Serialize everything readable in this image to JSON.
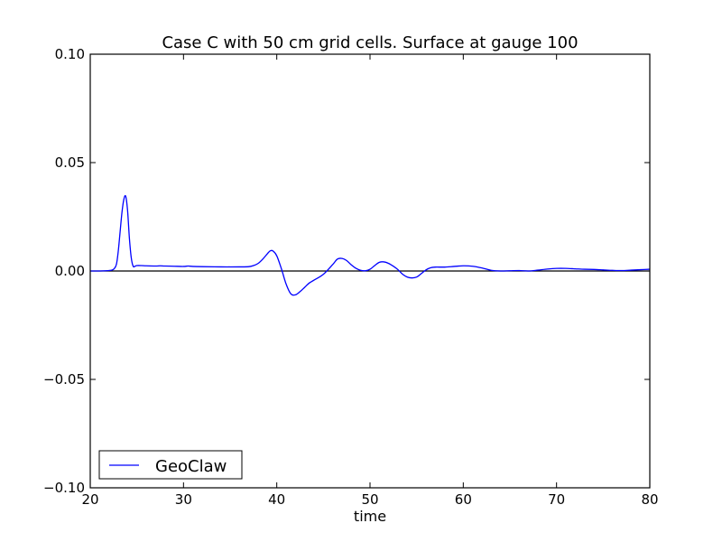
{
  "chart_data": {
    "type": "line",
    "title": "Case C with 50 cm grid cells.  Surface at gauge 100",
    "xlabel": "time",
    "ylabel": "",
    "xlim": [
      20,
      80
    ],
    "ylim": [
      -0.1,
      0.1
    ],
    "x_ticks": [
      20,
      30,
      40,
      50,
      60,
      70,
      80
    ],
    "x_tick_labels": [
      "20",
      "30",
      "40",
      "50",
      "60",
      "70",
      "80"
    ],
    "y_ticks": [
      -0.1,
      -0.05,
      0.0,
      0.05,
      0.1
    ],
    "y_tick_labels": [
      "−0.10",
      "−0.05",
      "0.00",
      "0.05",
      "0.10"
    ],
    "grid": false,
    "reference_line": {
      "y": 0.0,
      "color": "#000000"
    },
    "legend": {
      "position": "lower-left",
      "entries": [
        "GeoClaw"
      ]
    },
    "series": [
      {
        "name": "GeoClaw",
        "color": "#0000ff",
        "x": [
          20,
          21,
          22,
          22.5,
          22.8,
          23.0,
          23.2,
          23.4,
          23.6,
          23.8,
          24.0,
          24.2,
          24.4,
          24.6,
          24.8,
          25.0,
          25.5,
          26,
          27,
          27.5,
          28,
          29,
          30,
          30.5,
          31,
          32,
          34,
          36,
          37,
          37.5,
          38,
          38.5,
          39,
          39.3,
          39.6,
          40,
          40.5,
          41,
          41.5,
          42,
          42.5,
          43,
          43.5,
          44,
          45,
          46,
          46.5,
          47,
          47.5,
          48,
          48.5,
          49,
          49.5,
          50,
          50.5,
          51,
          51.5,
          52,
          52.5,
          53,
          53.5,
          54,
          54.5,
          55,
          55.5,
          56,
          56.5,
          57,
          58,
          59,
          60,
          61,
          62,
          63,
          64,
          65,
          66,
          67,
          68,
          69,
          70,
          71,
          72,
          73,
          74,
          75,
          76,
          77,
          78,
          79,
          80
        ],
        "y": [
          0.0,
          0.0,
          0.0002,
          0.0008,
          0.003,
          0.009,
          0.018,
          0.027,
          0.033,
          0.0345,
          0.028,
          0.015,
          0.006,
          0.0022,
          0.0022,
          0.0025,
          0.0025,
          0.0024,
          0.0023,
          0.0024,
          0.0023,
          0.0022,
          0.0021,
          0.0023,
          0.0021,
          0.002,
          0.0019,
          0.0019,
          0.002,
          0.0025,
          0.0035,
          0.0055,
          0.008,
          0.0093,
          0.0092,
          0.007,
          0.001,
          -0.006,
          -0.0105,
          -0.011,
          -0.0095,
          -0.0075,
          -0.0055,
          -0.0042,
          -0.0015,
          0.003,
          0.0055,
          0.0058,
          0.0048,
          0.0028,
          0.0012,
          0.0003,
          0.0001,
          0.0008,
          0.0025,
          0.004,
          0.0042,
          0.0035,
          0.0022,
          0.0006,
          -0.0015,
          -0.0028,
          -0.0032,
          -0.0028,
          -0.0012,
          0.0005,
          0.0015,
          0.0018,
          0.0018,
          0.0021,
          0.0024,
          0.0022,
          0.0014,
          0.0003,
          0.0,
          0.0001,
          0.0002,
          0.0,
          0.0004,
          0.0009,
          0.0012,
          0.0012,
          0.001,
          0.0008,
          0.0007,
          0.0005,
          0.0003,
          0.0002,
          0.0004,
          0.0006,
          0.0008
        ]
      }
    ]
  }
}
